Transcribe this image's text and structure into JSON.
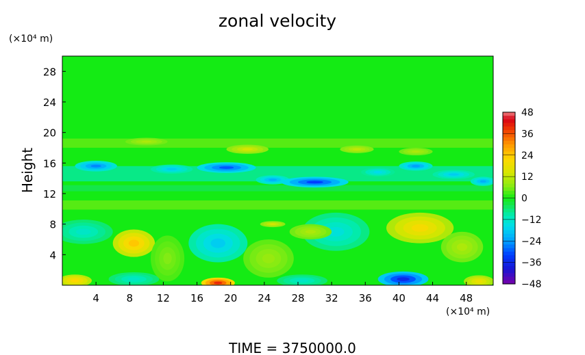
{
  "chart_data": {
    "type": "heatmap",
    "title": "zonal velocity",
    "xlabel": "",
    "ylabel": "Height",
    "x_unit": "(×10⁴ m)",
    "y_unit": "(×10⁴ m)",
    "xlim": [
      0,
      51.2
    ],
    "ylim": [
      0,
      30
    ],
    "x_ticks": [
      4,
      8,
      12,
      16,
      20,
      24,
      28,
      32,
      36,
      40,
      44,
      48
    ],
    "y_ticks": [
      4,
      8,
      12,
      16,
      20,
      24,
      28
    ],
    "colorbar": {
      "ticks": [
        48,
        36,
        24,
        12,
        0,
        -12,
        -24,
        -36,
        -48
      ],
      "range": [
        -48,
        48
      ]
    },
    "footer": "TIME = 3750000.0",
    "background_value": 0,
    "features": [
      {
        "x": 1.5,
        "y": 0.6,
        "v": 22,
        "rx": 2.0,
        "ry": 0.8
      },
      {
        "x": 8.5,
        "y": 5.5,
        "v": 24,
        "rx": 2.5,
        "ry": 1.8
      },
      {
        "x": 18.5,
        "y": 0.3,
        "v": 40,
        "rx": 2.0,
        "ry": 0.7
      },
      {
        "x": 18.5,
        "y": 5.5,
        "v": -18,
        "rx": 3.5,
        "ry": 2.5
      },
      {
        "x": 8.5,
        "y": 0.8,
        "v": -12,
        "rx": 3.0,
        "ry": 0.9
      },
      {
        "x": 2.5,
        "y": 7.0,
        "v": -12,
        "rx": 3.5,
        "ry": 1.6
      },
      {
        "x": 28.5,
        "y": 0.6,
        "v": -12,
        "rx": 3.0,
        "ry": 0.8
      },
      {
        "x": 32.5,
        "y": 7.0,
        "v": -14,
        "rx": 4.0,
        "ry": 2.5
      },
      {
        "x": 42.5,
        "y": 7.5,
        "v": 20,
        "rx": 4.0,
        "ry": 2.0
      },
      {
        "x": 40.5,
        "y": 0.8,
        "v": -36,
        "rx": 3.0,
        "ry": 1.0
      },
      {
        "x": 29.5,
        "y": 7.0,
        "v": 10,
        "rx": 2.5,
        "ry": 1.0
      },
      {
        "x": 49.5,
        "y": 0.5,
        "v": 18,
        "rx": 1.8,
        "ry": 0.8
      },
      {
        "x": 24.5,
        "y": 3.5,
        "v": 8,
        "rx": 3.0,
        "ry": 2.5
      },
      {
        "x": 12.5,
        "y": 3.5,
        "v": 6,
        "rx": 2.0,
        "ry": 3.0
      },
      {
        "x": 47.5,
        "y": 5.0,
        "v": 10,
        "rx": 2.5,
        "ry": 2.0
      },
      {
        "x": 4.0,
        "y": 15.6,
        "v": -26,
        "rx": 2.5,
        "ry": 0.7
      },
      {
        "x": 13.0,
        "y": 15.2,
        "v": -18,
        "rx": 2.5,
        "ry": 0.6
      },
      {
        "x": 19.5,
        "y": 15.4,
        "v": -30,
        "rx": 3.5,
        "ry": 0.7
      },
      {
        "x": 25.0,
        "y": 13.8,
        "v": -22,
        "rx": 2.0,
        "ry": 0.6
      },
      {
        "x": 30.0,
        "y": 13.5,
        "v": -32,
        "rx": 4.0,
        "ry": 0.7
      },
      {
        "x": 37.5,
        "y": 14.8,
        "v": -16,
        "rx": 2.0,
        "ry": 0.6
      },
      {
        "x": 42.0,
        "y": 15.6,
        "v": -24,
        "rx": 2.0,
        "ry": 0.6
      },
      {
        "x": 46.5,
        "y": 14.5,
        "v": -18,
        "rx": 2.5,
        "ry": 0.6
      },
      {
        "x": 50.0,
        "y": 13.6,
        "v": -22,
        "rx": 1.5,
        "ry": 0.6
      },
      {
        "x": 22.0,
        "y": 17.8,
        "v": 14,
        "rx": 2.5,
        "ry": 0.6
      },
      {
        "x": 35.0,
        "y": 17.8,
        "v": 12,
        "rx": 2.0,
        "ry": 0.5
      },
      {
        "x": 10.0,
        "y": 18.8,
        "v": 10,
        "rx": 2.5,
        "ry": 0.5
      },
      {
        "x": 42.0,
        "y": 17.5,
        "v": 10,
        "rx": 2.0,
        "ry": 0.5
      },
      {
        "x": 25.0,
        "y": 8.0,
        "v": 14,
        "rx": 1.5,
        "ry": 0.4
      }
    ],
    "bands": [
      {
        "y": 14.6,
        "v": -8,
        "h": 2.0
      },
      {
        "y": 12.7,
        "v": -4,
        "h": 0.8
      },
      {
        "y": 10.5,
        "v": 4,
        "h": 1.2
      },
      {
        "y": 18.6,
        "v": 4,
        "h": 1.2
      }
    ]
  }
}
